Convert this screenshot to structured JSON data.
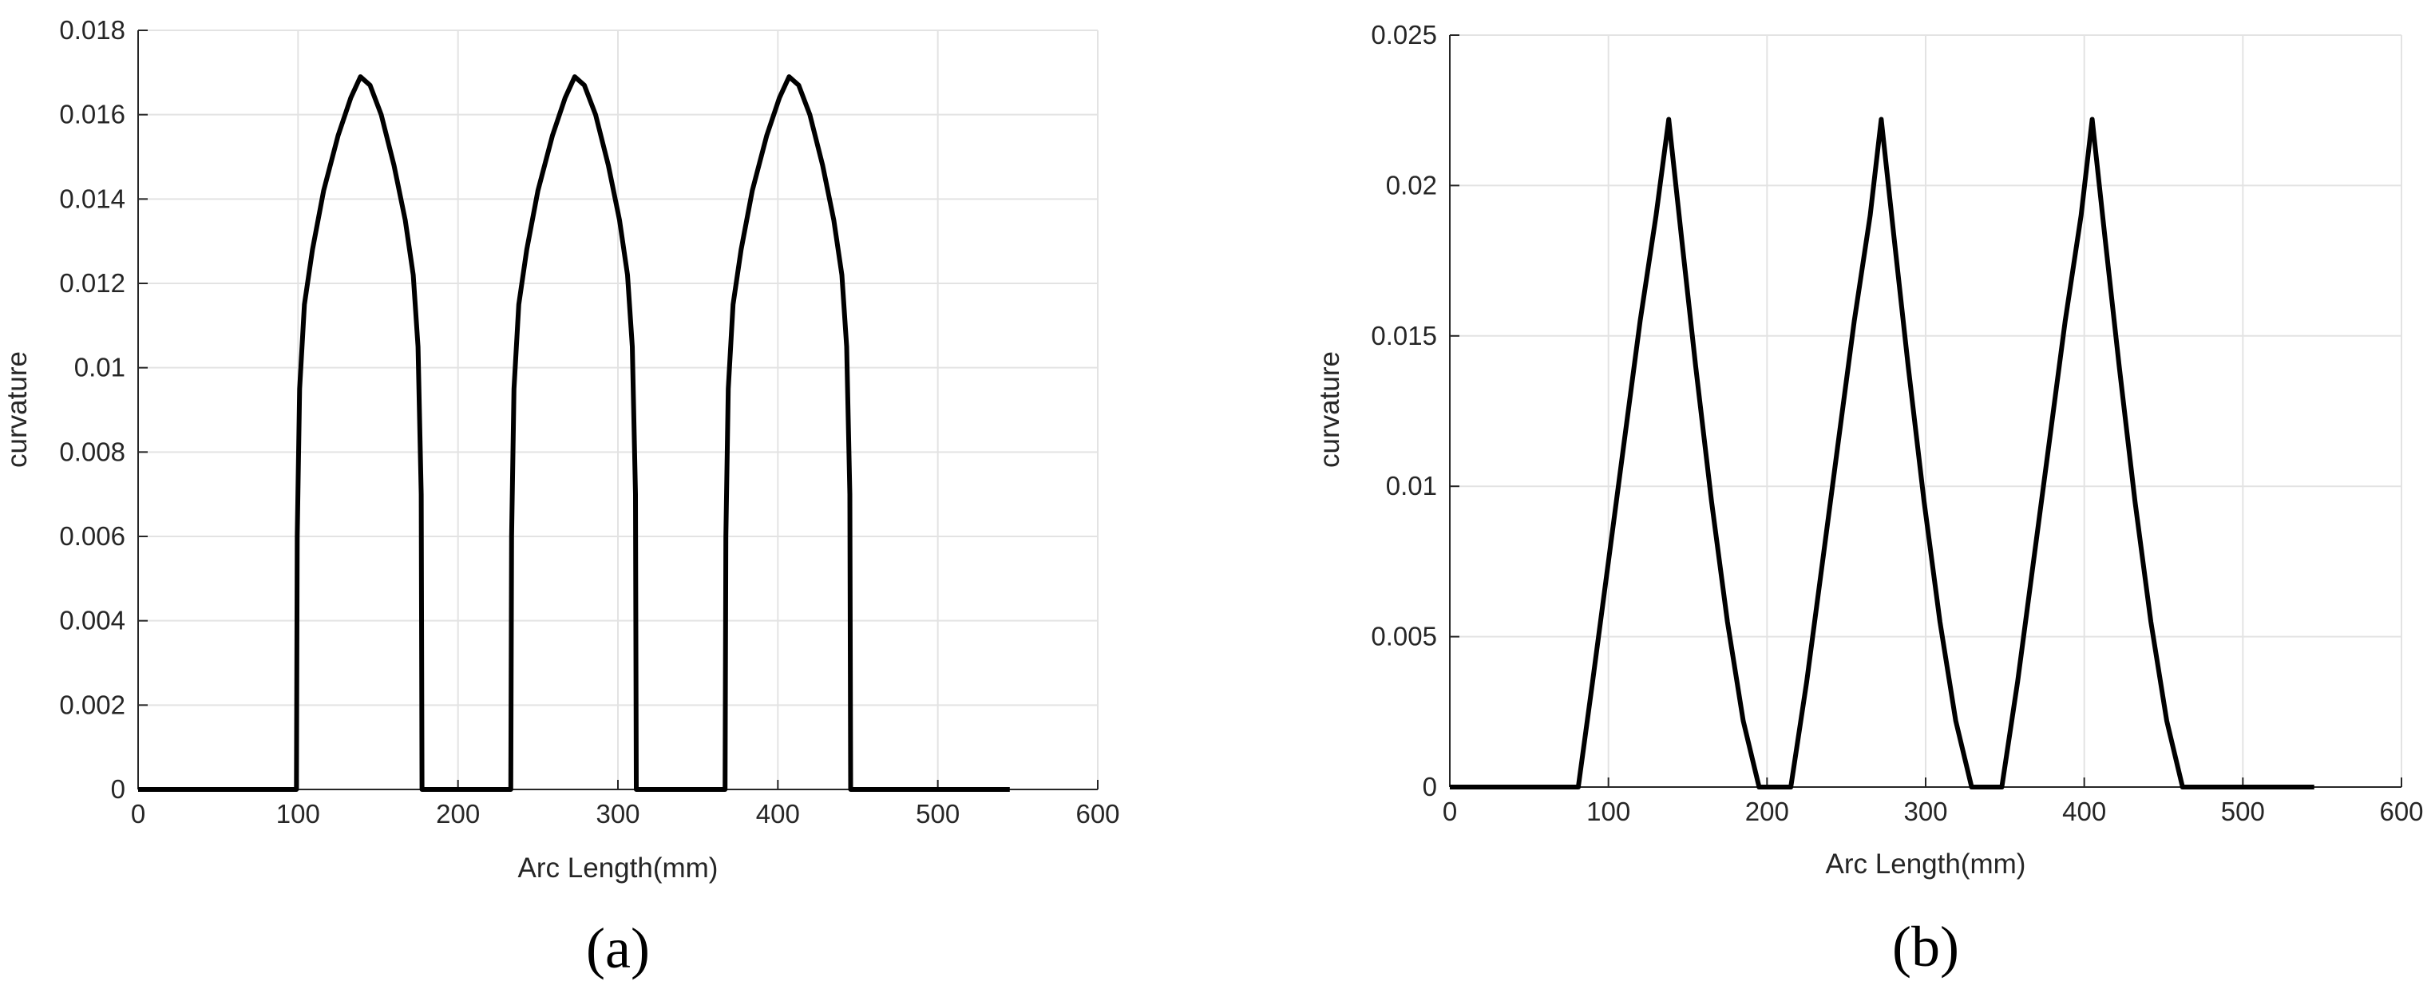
{
  "chart_data": [
    {
      "type": "line",
      "panel_label": "(a)",
      "xlabel": "Arc Length(mm)",
      "ylabel": "curvature",
      "xlim": [
        0,
        600
      ],
      "ylim": [
        0,
        0.018
      ],
      "xticks": [
        0,
        100,
        200,
        300,
        400,
        500,
        600
      ],
      "xtick_labels": [
        "0",
        "100",
        "200",
        "300",
        "400",
        "500",
        "600"
      ],
      "yticks": [
        0,
        0.002,
        0.004,
        0.006,
        0.008,
        0.01,
        0.012,
        0.014,
        0.016,
        0.018
      ],
      "ytick_labels": [
        "0",
        "0.002",
        "0.004",
        "0.006",
        "0.008",
        "0.01",
        "0.012",
        "0.014",
        "0.016",
        "0.018"
      ],
      "grid": true,
      "color": "#000000",
      "series": [
        {
          "x": [
            0,
            99,
            99.5,
            101,
            104,
            109,
            116,
            125,
            133,
            139,
            145,
            152,
            160,
            167,
            172,
            175,
            177,
            177.5,
            177.5,
            233,
            233,
            233.5,
            235,
            238,
            243,
            250,
            259,
            267,
            273,
            279,
            286,
            294,
            301,
            306,
            309,
            311,
            311.5,
            311.5,
            367,
            367,
            367.5,
            369,
            372,
            377,
            384,
            393,
            401,
            407,
            413,
            420,
            428,
            435,
            440,
            443,
            445,
            445.5,
            445.5,
            545
          ],
          "y": [
            0,
            0,
            0.006,
            0.0095,
            0.0115,
            0.0128,
            0.0142,
            0.0155,
            0.0164,
            0.0169,
            0.0167,
            0.016,
            0.0148,
            0.0135,
            0.0122,
            0.0105,
            0.007,
            0,
            0,
            0,
            0,
            0.006,
            0.0095,
            0.0115,
            0.0128,
            0.0142,
            0.0155,
            0.0164,
            0.0169,
            0.0167,
            0.016,
            0.0148,
            0.0135,
            0.0122,
            0.0105,
            0.007,
            0,
            0,
            0,
            0,
            0.006,
            0.0095,
            0.0115,
            0.0128,
            0.0142,
            0.0155,
            0.0164,
            0.0169,
            0.0167,
            0.016,
            0.0148,
            0.0135,
            0.0122,
            0.0105,
            0.007,
            0,
            0,
            0
          ]
        }
      ]
    },
    {
      "type": "line",
      "panel_label": "(b)",
      "xlabel": "Arc Length(mm)",
      "ylabel": "curvature",
      "xlim": [
        0,
        600
      ],
      "ylim": [
        0,
        0.025
      ],
      "xticks": [
        0,
        100,
        200,
        300,
        400,
        500,
        600
      ],
      "xtick_labels": [
        "0",
        "100",
        "200",
        "300",
        "400",
        "500",
        "600"
      ],
      "yticks": [
        0,
        0.005,
        0.01,
        0.015,
        0.02,
        0.025
      ],
      "ytick_labels": [
        "0",
        "0.005",
        "0.01",
        "0.015",
        "0.02",
        "0.025"
      ],
      "grid": true,
      "color": "#000000",
      "series": [
        {
          "x": [
            0,
            81,
            90,
            100,
            110,
            120,
            130,
            138,
            146,
            155,
            165,
            175,
            185,
            195,
            215,
            225,
            235,
            245,
            255,
            265,
            272,
            280,
            289,
            299,
            309,
            319,
            329,
            348,
            358,
            368,
            378,
            388,
            398,
            405,
            413,
            422,
            432,
            442,
            452,
            462,
            545
          ],
          "y": [
            0,
            0,
            0.0035,
            0.0075,
            0.0115,
            0.0155,
            0.019,
            0.0222,
            0.0183,
            0.014,
            0.0095,
            0.0055,
            0.0022,
            0,
            0,
            0.0035,
            0.0075,
            0.0115,
            0.0155,
            0.019,
            0.0222,
            0.0183,
            0.014,
            0.0095,
            0.0055,
            0.0022,
            0,
            0,
            0.0035,
            0.0075,
            0.0115,
            0.0155,
            0.019,
            0.0222,
            0.0183,
            0.014,
            0.0095,
            0.0055,
            0.0022,
            0,
            0
          ]
        }
      ]
    }
  ]
}
